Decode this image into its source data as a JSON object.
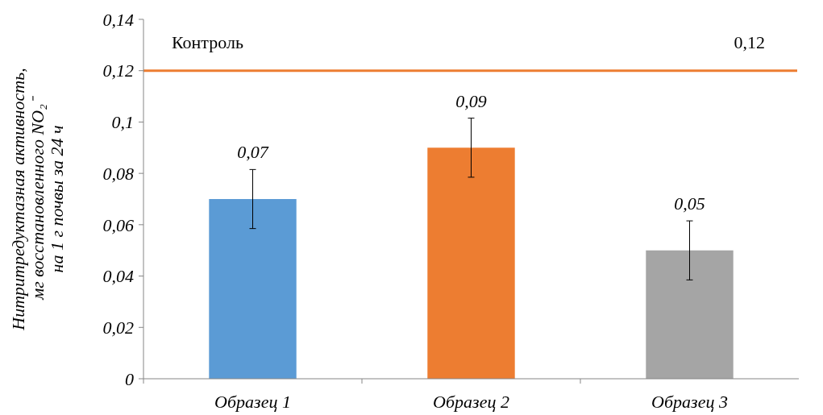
{
  "chart_data": {
    "type": "bar",
    "ylabel": "Нитритредуктазная активность,\nмг восстановленного NO₂⁻\nна 1 г почвы за 24 ч",
    "categories": [
      "Образец 1",
      "Образец 2",
      "Образец 3"
    ],
    "values": [
      0.07,
      0.09,
      0.05
    ],
    "colors": [
      "#5b9bd5",
      "#ed7d31",
      "#a5a5a5"
    ],
    "errors": [
      0.0115,
      0.0115,
      0.0115
    ],
    "value_labels": [
      "0,07",
      "0,09",
      "0,05"
    ],
    "ylim": [
      0,
      0.14
    ],
    "yticks": [
      {
        "value": 0,
        "label": "0"
      },
      {
        "value": 0.02,
        "label": "0,02"
      },
      {
        "value": 0.04,
        "label": "0,04"
      },
      {
        "value": 0.06,
        "label": "0,06"
      },
      {
        "value": 0.08,
        "label": "0,08"
      },
      {
        "value": 0.1,
        "label": "0,1"
      },
      {
        "value": 0.12,
        "label": "0,12"
      },
      {
        "value": 0.14,
        "label": "0,14"
      }
    ],
    "ref_lines": [
      {
        "axis": "y",
        "value": 0.12,
        "label": "Контроль",
        "color": "#ed7d31"
      }
    ],
    "annotations": [
      {
        "text": "0,12",
        "y": 0.12
      }
    ],
    "grid": false
  }
}
